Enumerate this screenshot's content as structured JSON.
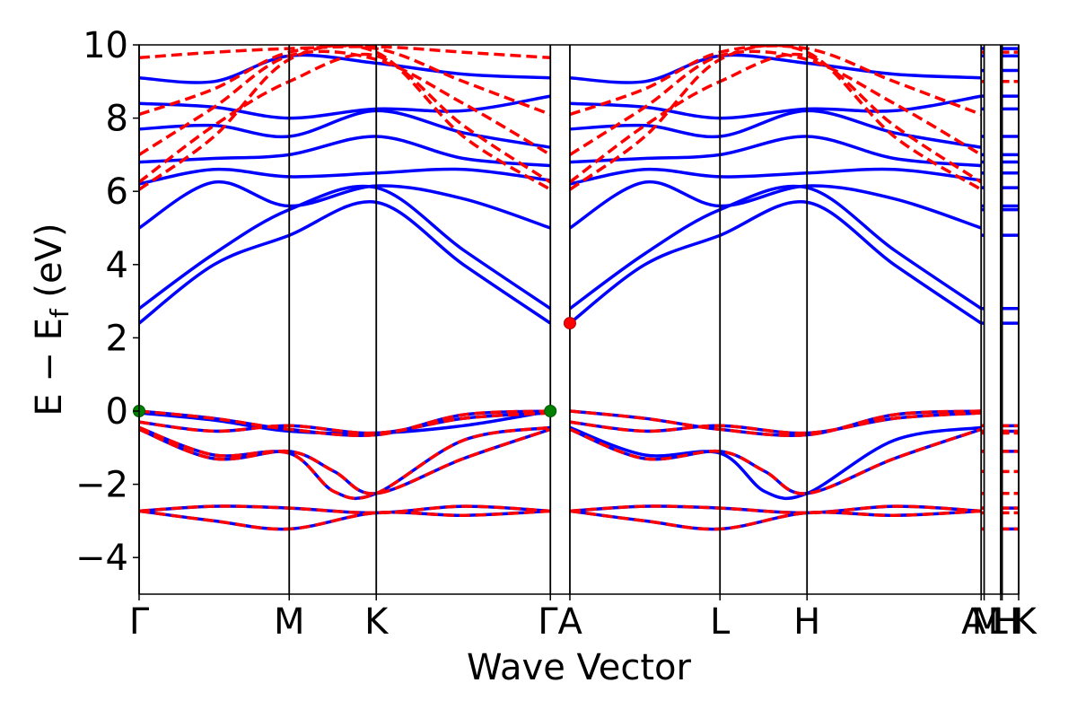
{
  "chart_data": {
    "type": "line",
    "xlabel": "Wave Vector",
    "ylabel": "E − E_f (eV)",
    "ylabel_parts": {
      "main": "E − E",
      "sub": "f",
      "unit": " (eV)"
    },
    "ylim": [
      -5,
      10
    ],
    "y_ticks": [
      -4,
      -2,
      0,
      2,
      4,
      6,
      8,
      10
    ],
    "y_tick_labels": [
      "−4",
      "−2",
      "0",
      "2",
      "4",
      "6",
      "8",
      "10"
    ],
    "x_range": [
      0,
      5.86
    ],
    "grid": false,
    "high_symmetry_points": [
      {
        "label": "Γ",
        "x": 0.0
      },
      {
        "label": "M",
        "x": 1.0
      },
      {
        "label": "K",
        "x": 1.58
      },
      {
        "label": "Γ",
        "x": 2.74
      },
      {
        "label": "A",
        "x": 2.87
      },
      {
        "label": "L",
        "x": 3.87
      },
      {
        "label": "H",
        "x": 4.45
      },
      {
        "label": "A",
        "x": 5.61
      },
      {
        "label": "M",
        "x": 5.63
      },
      {
        "label": "L",
        "x": 5.74
      },
      {
        "label": "H",
        "x": 5.75
      },
      {
        "label": "K",
        "x": 5.86
      }
    ],
    "tick_label_text": [
      "Γ",
      "M",
      "K",
      "ΓA",
      "L",
      "H",
      "A",
      "M",
      "L",
      "H",
      "K"
    ],
    "series": [
      {
        "style": "solid",
        "color": "#0000ff",
        "bands": [
          {
            "x": [
              0,
              0.5,
              1,
              1.58,
              2.16,
              2.74
            ],
            "y": [
              -2.73,
              -2.6,
              -2.65,
              -2.78,
              -2.6,
              -2.73
            ]
          },
          {
            "x": [
              0,
              0.5,
              1,
              1.58,
              2.16,
              2.74
            ],
            "y": [
              -2.73,
              -3.0,
              -3.22,
              -2.78,
              -2.85,
              -2.73
            ]
          },
          {
            "x": [
              0,
              0.5,
              1,
              1.3,
              1.58,
              2.16,
              2.74
            ],
            "y": [
              -0.5,
              -1.3,
              -1.1,
              -1.65,
              -2.25,
              -1.3,
              -0.5
            ]
          },
          {
            "x": [
              0,
              0.5,
              1,
              1.3,
              1.58,
              2.16,
              2.74
            ],
            "y": [
              -0.45,
              -1.2,
              -1.15,
              -2.2,
              -2.25,
              -0.8,
              -0.45
            ]
          },
          {
            "x": [
              0,
              0.5,
              1,
              1.58,
              2.16,
              2.74
            ],
            "y": [
              -0.3,
              -0.55,
              -0.4,
              -0.6,
              -0.2,
              -0.05
            ]
          },
          {
            "x": [
              0,
              0.5,
              1,
              1.58,
              2.16,
              2.74
            ],
            "y": [
              -0.05,
              -0.25,
              -0.55,
              -0.6,
              -0.4,
              0
            ]
          },
          {
            "x": [
              0,
              0.5,
              1,
              1.58,
              2.16,
              2.74
            ],
            "y": [
              0,
              -0.2,
              -0.5,
              -0.65,
              -0.1,
              0
            ]
          },
          {
            "x": [
              0,
              0.5,
              1,
              1.58,
              2.16,
              2.74
            ],
            "y": [
              2.4,
              4.0,
              4.8,
              5.7,
              4.0,
              2.4
            ]
          },
          {
            "x": [
              0,
              0.5,
              1,
              1.58,
              2.16,
              2.74
            ],
            "y": [
              2.8,
              4.3,
              5.5,
              6.1,
              4.4,
              2.8
            ]
          },
          {
            "x": [
              0,
              0.5,
              1,
              1.58,
              2.16,
              2.74
            ],
            "y": [
              5.0,
              6.25,
              5.6,
              6.15,
              5.8,
              5.0
            ]
          },
          {
            "x": [
              0,
              0.5,
              1,
              1.58,
              2.16,
              2.74
            ],
            "y": [
              6.2,
              6.6,
              6.4,
              6.5,
              6.6,
              6.3
            ]
          },
          {
            "x": [
              0,
              0.5,
              1,
              1.58,
              2.16,
              2.74
            ],
            "y": [
              6.8,
              6.9,
              7.0,
              7.5,
              6.9,
              6.7
            ]
          },
          {
            "x": [
              0,
              0.5,
              1,
              1.58,
              2.16,
              2.74
            ],
            "y": [
              7.7,
              7.8,
              7.5,
              8.2,
              7.6,
              7.2
            ]
          },
          {
            "x": [
              0,
              0.5,
              1,
              1.58,
              2.16,
              2.74
            ],
            "y": [
              8.4,
              8.3,
              8.0,
              8.25,
              8.2,
              8.6
            ]
          },
          {
            "x": [
              0,
              0.5,
              1,
              1.58,
              2.16,
              2.74
            ],
            "y": [
              9.1,
              9.0,
              9.7,
              9.5,
              9.2,
              9.1
            ]
          },
          {
            "x": [
              2.87,
              3.37,
              3.87,
              4.45,
              5.03,
              5.61
            ],
            "y": [
              -2.73,
              -2.6,
              -2.65,
              -2.78,
              -2.6,
              -2.73
            ]
          },
          {
            "x": [
              2.87,
              3.37,
              3.87,
              4.45,
              5.03,
              5.61
            ],
            "y": [
              -2.73,
              -3.0,
              -3.22,
              -2.78,
              -2.85,
              -2.73
            ]
          },
          {
            "x": [
              2.87,
              3.37,
              3.87,
              4.17,
              4.45,
              5.03,
              5.61
            ],
            "y": [
              -0.5,
              -1.3,
              -1.1,
              -1.65,
              -2.25,
              -1.3,
              -0.5
            ]
          },
          {
            "x": [
              2.87,
              3.37,
              3.87,
              4.17,
              4.45,
              5.03,
              5.61
            ],
            "y": [
              -0.45,
              -1.2,
              -1.15,
              -2.2,
              -2.25,
              -0.8,
              -0.45
            ]
          },
          {
            "x": [
              2.87,
              3.37,
              3.87,
              4.45,
              5.03,
              5.61
            ],
            "y": [
              -0.3,
              -0.55,
              -0.4,
              -0.6,
              -0.2,
              -0.05
            ]
          },
          {
            "x": [
              2.87,
              3.37,
              3.87,
              4.45,
              5.03,
              5.61
            ],
            "y": [
              0,
              -0.2,
              -0.5,
              -0.65,
              -0.1,
              0
            ]
          },
          {
            "x": [
              2.87,
              3.37,
              3.87,
              4.45,
              5.03,
              5.61
            ],
            "y": [
              2.4,
              4.0,
              4.8,
              5.7,
              4.0,
              2.4
            ]
          },
          {
            "x": [
              2.87,
              3.37,
              3.87,
              4.45,
              5.03,
              5.61
            ],
            "y": [
              2.8,
              4.3,
              5.5,
              6.1,
              4.4,
              2.8
            ]
          },
          {
            "x": [
              2.87,
              3.37,
              3.87,
              4.45,
              5.03,
              5.61
            ],
            "y": [
              5.0,
              6.25,
              5.6,
              6.15,
              5.8,
              5.0
            ]
          },
          {
            "x": [
              2.87,
              3.37,
              3.87,
              4.45,
              5.03,
              5.61
            ],
            "y": [
              6.2,
              6.6,
              6.4,
              6.5,
              6.6,
              6.3
            ]
          },
          {
            "x": [
              2.87,
              3.37,
              3.87,
              4.45,
              5.03,
              5.61
            ],
            "y": [
              6.8,
              6.9,
              7.0,
              7.5,
              6.9,
              6.7
            ]
          },
          {
            "x": [
              2.87,
              3.37,
              3.87,
              4.45,
              5.03,
              5.61
            ],
            "y": [
              7.7,
              7.8,
              7.5,
              8.2,
              7.6,
              7.2
            ]
          },
          {
            "x": [
              2.87,
              3.37,
              3.87,
              4.45,
              5.03,
              5.61
            ],
            "y": [
              8.4,
              8.3,
              8.0,
              8.25,
              8.2,
              8.6
            ]
          },
          {
            "x": [
              2.87,
              3.37,
              3.87,
              4.45,
              5.03,
              5.61
            ],
            "y": [
              9.1,
              9.0,
              9.7,
              9.5,
              9.2,
              9.1
            ]
          }
        ]
      },
      {
        "style": "dashed",
        "color": "#ff0000",
        "bands": [
          {
            "x": [
              0,
              0.5,
              1,
              1.58,
              2.16,
              2.74
            ],
            "y": [
              -2.73,
              -2.6,
              -2.65,
              -2.78,
              -2.6,
              -2.73
            ]
          },
          {
            "x": [
              0,
              0.5,
              1,
              1.58,
              2.16,
              2.74
            ],
            "y": [
              -2.73,
              -3.0,
              -3.22,
              -2.78,
              -2.85,
              -2.73
            ]
          },
          {
            "x": [
              0,
              0.5,
              1,
              1.3,
              1.58,
              2.16,
              2.74
            ],
            "y": [
              -0.5,
              -1.3,
              -1.1,
              -1.65,
              -2.25,
              -1.3,
              -0.5
            ]
          },
          {
            "x": [
              0,
              0.5,
              1,
              1.3,
              1.58,
              2.16,
              2.74
            ],
            "y": [
              -0.45,
              -1.2,
              -1.15,
              -2.2,
              -2.25,
              -0.8,
              -0.45
            ]
          },
          {
            "x": [
              0,
              0.5,
              1,
              1.58,
              2.16,
              2.74
            ],
            "y": [
              -0.3,
              -0.55,
              -0.4,
              -0.6,
              -0.2,
              -0.05
            ]
          },
          {
            "x": [
              0,
              0.5,
              1,
              1.58,
              2.16,
              2.74
            ],
            "y": [
              0,
              -0.2,
              -0.5,
              -0.65,
              -0.1,
              0
            ]
          },
          {
            "x": [
              0,
              0.5,
              1,
              1.58,
              2.16,
              2.74
            ],
            "y": [
              6.05,
              7.5,
              9.6,
              9.8,
              7.5,
              6.05
            ]
          },
          {
            "x": [
              0,
              0.5,
              1,
              1.58,
              2.16,
              2.74
            ],
            "y": [
              6.25,
              7.8,
              9.0,
              9.7,
              7.8,
              6.25
            ]
          },
          {
            "x": [
              0,
              0.5,
              1,
              1.58,
              2.16,
              2.74
            ],
            "y": [
              7.0,
              8.3,
              9.7,
              9.6,
              8.4,
              7.0
            ]
          },
          {
            "x": [
              0,
              0.5,
              1,
              1.58,
              2.16,
              2.74
            ],
            "y": [
              8.1,
              8.8,
              9.8,
              9.9,
              9.0,
              8.1
            ]
          },
          {
            "x": [
              0,
              0.5,
              1,
              1.58,
              2.16,
              2.74
            ],
            "y": [
              9.65,
              9.8,
              9.9,
              9.95,
              9.8,
              9.65
            ]
          },
          {
            "x": [
              2.87,
              3.37,
              3.87,
              4.45,
              5.03,
              5.61
            ],
            "y": [
              -2.73,
              -2.6,
              -2.65,
              -2.78,
              -2.6,
              -2.73
            ]
          },
          {
            "x": [
              2.87,
              3.37,
              3.87,
              4.45,
              5.03,
              5.61
            ],
            "y": [
              -2.73,
              -3.0,
              -3.22,
              -2.78,
              -2.85,
              -2.73
            ]
          },
          {
            "x": [
              2.87,
              3.37,
              3.87,
              4.17,
              4.45,
              5.03,
              5.61
            ],
            "y": [
              -0.5,
              -1.3,
              -1.1,
              -1.65,
              -2.25,
              -1.3,
              -0.5
            ]
          },
          {
            "x": [
              2.87,
              3.37,
              3.87,
              4.45,
              5.03,
              5.61
            ],
            "y": [
              -0.3,
              -0.55,
              -0.4,
              -0.6,
              -0.2,
              -0.05
            ]
          },
          {
            "x": [
              2.87,
              3.37,
              3.87,
              4.45,
              5.03,
              5.61
            ],
            "y": [
              0,
              -0.2,
              -0.5,
              -0.65,
              -0.1,
              0
            ]
          },
          {
            "x": [
              2.87,
              3.37,
              3.87,
              4.45,
              5.03,
              5.61
            ],
            "y": [
              6.05,
              7.5,
              9.6,
              9.8,
              7.5,
              6.05
            ]
          },
          {
            "x": [
              2.87,
              3.37,
              3.87,
              4.45,
              5.03,
              5.61
            ],
            "y": [
              6.25,
              7.8,
              9.0,
              9.7,
              7.8,
              6.25
            ]
          },
          {
            "x": [
              2.87,
              3.37,
              3.87,
              4.45,
              5.03,
              5.61
            ],
            "y": [
              7.0,
              8.3,
              9.7,
              9.6,
              8.4,
              7.0
            ]
          },
          {
            "x": [
              2.87,
              3.37,
              3.87,
              4.45,
              5.03,
              5.61
            ],
            "y": [
              8.1,
              8.8,
              9.8,
              9.9,
              9.0,
              8.1
            ]
          }
        ]
      }
    ],
    "flat_bands": {
      "segments": [
        [
          5.61,
          5.63
        ],
        [
          5.75,
          5.86
        ]
      ],
      "blue_levels": [
        -3.22,
        -2.65,
        -1.1,
        -0.55,
        -0.4,
        2.4,
        2.8,
        4.8,
        5.5,
        5.6,
        6.1,
        6.5,
        6.8,
        7.0,
        7.5,
        8.25,
        8.6,
        9.3,
        9.7,
        9.9
      ],
      "red_levels": [
        -3.22,
        -2.78,
        -2.65,
        -2.25,
        -1.65,
        -1.1,
        -0.6,
        -0.55,
        -0.4,
        9.0,
        9.8
      ]
    },
    "markers": [
      {
        "name": "vbm",
        "x": 0.0,
        "y": 0.0,
        "color": "#008000"
      },
      {
        "name": "vbm",
        "x": 2.74,
        "y": 0.0,
        "color": "#008000"
      },
      {
        "name": "cbm",
        "x": 2.87,
        "y": 2.4,
        "color": "#ff0000"
      }
    ]
  }
}
